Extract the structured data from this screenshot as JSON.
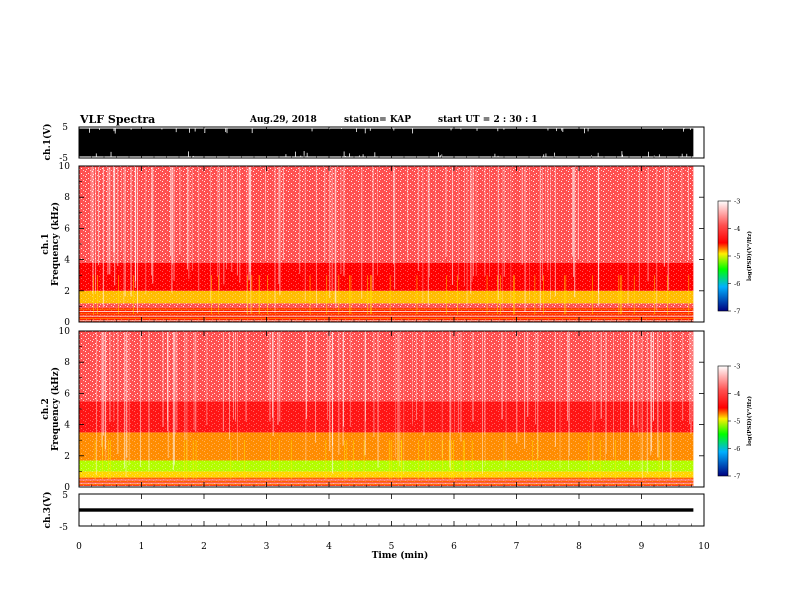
{
  "header": {
    "title": "VLF Spectra",
    "date": "Aug.29, 2018",
    "station": "station= KAP",
    "start_ut": "start UT =  2 : 30 : 1"
  },
  "colorbar": {
    "label": "log(PSD)(V²/Hz)",
    "ticks": [
      "-3",
      "-4",
      "-5",
      "-6",
      "-7"
    ],
    "range": [
      -7,
      -3
    ]
  },
  "panels": {
    "ch1v": {
      "ylabel": "ch.1(V)",
      "ticks": [
        "5",
        "-5"
      ]
    },
    "ch1": {
      "ylabel_top": "ch.1",
      "ylabel": "Frequency (kHz)",
      "ticks": [
        "0",
        "2",
        "4",
        "6",
        "8",
        "10"
      ]
    },
    "ch2": {
      "ylabel_top": "ch.2",
      "ylabel": "Frequency (kHz)",
      "ticks": [
        "0",
        "2",
        "4",
        "6",
        "8",
        "10"
      ]
    },
    "ch3v": {
      "ylabel": "ch.3(V)",
      "ticks": [
        "5",
        "-5"
      ]
    }
  },
  "xaxis": {
    "label": "Time (min)",
    "ticks": [
      "0",
      "1",
      "2",
      "3",
      "4",
      "5",
      "6",
      "7",
      "8",
      "9",
      "10"
    ]
  },
  "chart_data": [
    {
      "type": "area",
      "panel": "ch.1 waveform",
      "ylabel": "ch.1(V)",
      "ylim": [
        -5,
        5
      ],
      "xlim": [
        0,
        10
      ],
      "x_unit": "min",
      "data_end_min": 9.83,
      "amplitude_envelope_v": [
        4.5,
        -4.5
      ],
      "color": "#000000"
    },
    {
      "type": "heatmap",
      "panel": "ch.1 spectrogram",
      "ylabel": "Frequency (kHz)",
      "ylim": [
        0,
        10
      ],
      "xlim": [
        0,
        10
      ],
      "data_end_min": 9.83,
      "color_scale": "log(PSD)(V²/Hz)",
      "color_range": [
        -7,
        -3
      ],
      "bands": [
        {
          "from_khz": 0,
          "to_khz": 0.9,
          "level": -3.7,
          "note": "horizontal lines"
        },
        {
          "from_khz": 0.9,
          "to_khz": 1.2,
          "level": -3.2
        },
        {
          "from_khz": 1.2,
          "to_khz": 2.0,
          "level": -4.2,
          "note": "yellow-orange band"
        },
        {
          "from_khz": 2.0,
          "to_khz": 3.8,
          "level": -3.6
        },
        {
          "from_khz": 3.8,
          "to_khz": 10,
          "level": -3.2
        }
      ]
    },
    {
      "type": "heatmap",
      "panel": "ch.2 spectrogram",
      "ylabel": "Frequency (kHz)",
      "ylim": [
        0,
        10
      ],
      "xlim": [
        0,
        10
      ],
      "data_end_min": 9.83,
      "color_scale": "log(PSD)(V²/Hz)",
      "color_range": [
        -7,
        -3
      ],
      "bands": [
        {
          "from_khz": 0,
          "to_khz": 0.6,
          "level": -3.7,
          "note": "horizontal lines"
        },
        {
          "from_khz": 0.6,
          "to_khz": 1.0,
          "level": -4.3
        },
        {
          "from_khz": 1.0,
          "to_khz": 1.7,
          "level": -4.85,
          "note": "green band"
        },
        {
          "from_khz": 1.7,
          "to_khz": 3.5,
          "level": -4.0
        },
        {
          "from_khz": 3.5,
          "to_khz": 5.5,
          "level": -3.5
        },
        {
          "from_khz": 5.5,
          "to_khz": 10,
          "level": -3.2
        }
      ]
    },
    {
      "type": "line",
      "panel": "ch.3 waveform",
      "ylabel": "ch.3(V)",
      "ylim": [
        -5,
        5
      ],
      "xlim": [
        0,
        10
      ],
      "data_end_min": 9.83,
      "value_v": 0,
      "color": "#000000"
    }
  ]
}
